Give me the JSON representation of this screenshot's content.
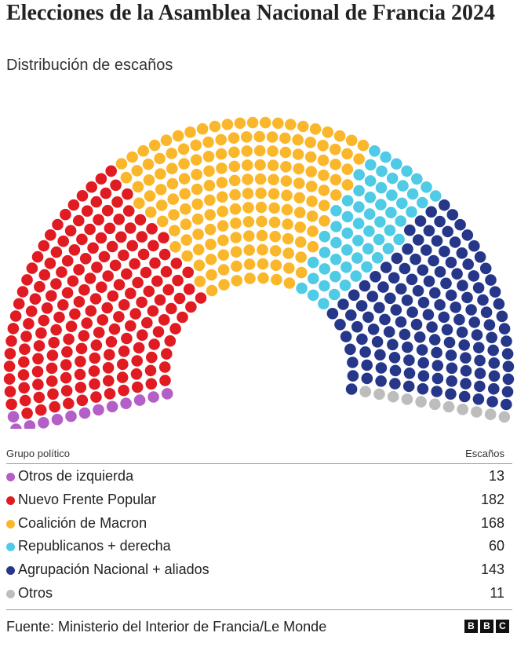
{
  "header": {
    "title": "Elecciones de la Asamblea Nacional de Francia 2024",
    "subtitle": "Distribución de escaños"
  },
  "chart_data": {
    "type": "hemicycle",
    "title": "Elecciones de la Asamblea Nacional de Francia 2024",
    "subtitle": "Distribución de escaños",
    "total_seats": 577,
    "series": [
      {
        "name": "Otros de izquierda",
        "value": 13,
        "color": "#b45ec7"
      },
      {
        "name": "Nuevo Frente Popular",
        "value": 182,
        "color": "#e01b22"
      },
      {
        "name": "Coalición de Macron",
        "value": 168,
        "color": "#fbb72b"
      },
      {
        "name": "Republicanos + derecha",
        "value": 60,
        "color": "#4fcbe6"
      },
      {
        "name": "Agrupación Nacional + aliados",
        "value": 143,
        "color": "#26378a"
      },
      {
        "name": "Otros",
        "value": 11,
        "color": "#bdbdbd"
      }
    ]
  },
  "table": {
    "col_group": "Grupo político",
    "col_seats": "Escaños"
  },
  "footer": {
    "source": "Fuente: Ministerio del Interior de Francia/Le Monde",
    "logo_letters": [
      "B",
      "B",
      "C"
    ]
  }
}
